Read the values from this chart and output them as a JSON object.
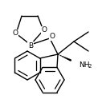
{
  "bg_color": "#ffffff",
  "line_color": "#000000",
  "lw": 1.0,
  "figsize": [
    1.22,
    1.24
  ],
  "dpi": 100,
  "B_label": "B",
  "O_label": "O",
  "NH2_label": "NH",
  "two_label": "2"
}
